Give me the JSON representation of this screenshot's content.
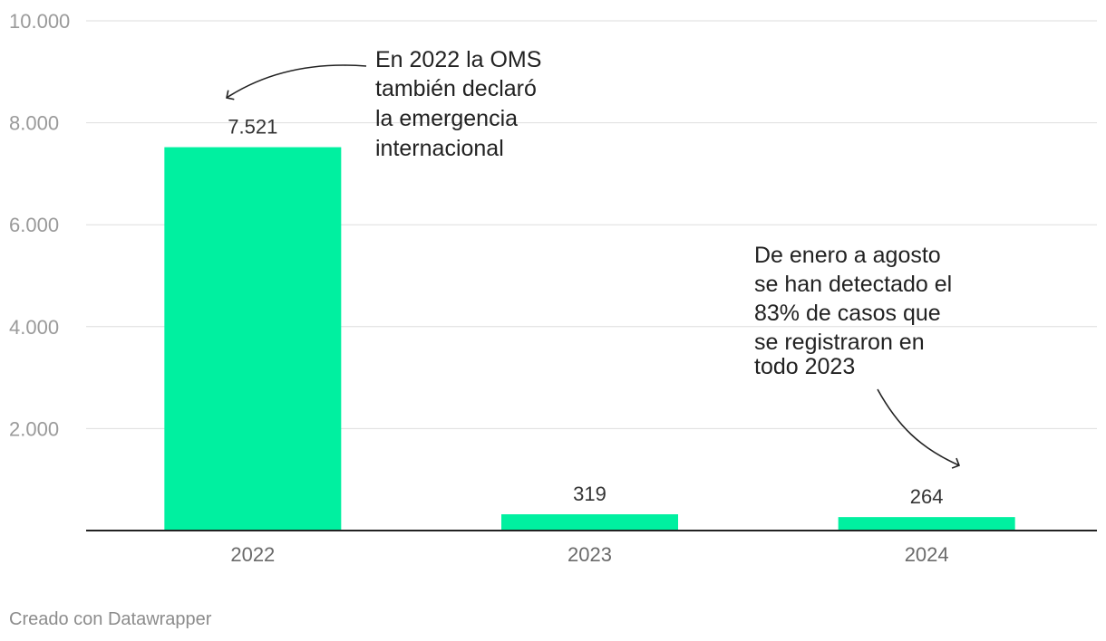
{
  "chart_data": {
    "type": "bar",
    "categories": [
      "2022",
      "2023",
      "2024"
    ],
    "values": [
      7521,
      319,
      264
    ],
    "value_labels": [
      "7.521",
      "319",
      "264"
    ],
    "ylim": [
      0,
      10000
    ],
    "yticks": [
      2000,
      4000,
      6000,
      8000,
      10000
    ],
    "ytick_labels": [
      "2.000",
      "4.000",
      "6.000",
      "8.000",
      "10.000"
    ],
    "bar_color": "#00f0a0",
    "grid": true,
    "annotations": [
      {
        "lines": [
          "En 2022 la OMS",
          "también declaró",
          "la emergencia",
          "internacional"
        ],
        "target": "2022"
      },
      {
        "lines": [
          "De enero a agosto",
          "se han detectado el",
          "83% de casos que",
          "se registraron en",
          "todo 2023"
        ],
        "target": "2024"
      }
    ]
  },
  "footer": {
    "credit": "Creado con Datawrapper"
  }
}
